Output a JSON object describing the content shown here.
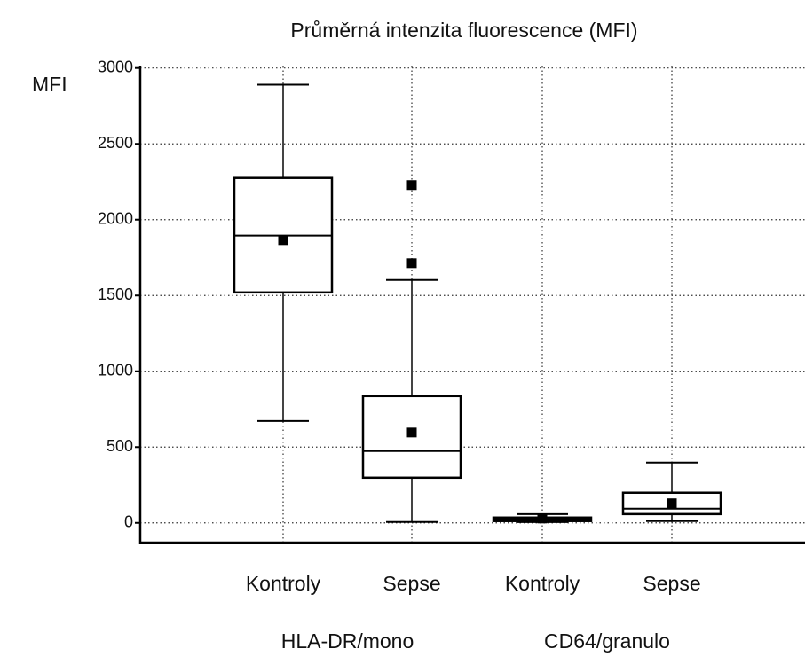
{
  "chart_data": {
    "type": "box",
    "title": "Průměrná intenzita fluorescence (MFI)",
    "y_label": "MFI",
    "ylim": [
      -130,
      3010
    ],
    "yticks": [
      0,
      500,
      1000,
      1500,
      2000,
      2500,
      3000
    ],
    "grid": true,
    "color": "#000000",
    "groups": [
      {
        "name": "HLA-DR/mono",
        "boxes": [
          {
            "category": "Kontroly",
            "min": 672,
            "q1": 1520,
            "median": 1895,
            "q3": 2275,
            "max": 2890,
            "mean": 1865
          },
          {
            "category": "Sepse",
            "min": 6,
            "q1": 298,
            "median": 474,
            "q3": 836,
            "max": 1602,
            "mean": 596,
            "outliers": [
              2228,
              1713
            ]
          }
        ]
      },
      {
        "name": "CD64/granulo",
        "boxes": [
          {
            "category": "Kontroly",
            "min": 5,
            "q1": 12,
            "median": 23,
            "q3": 35,
            "max": 58,
            "mean": 29
          },
          {
            "category": "Sepse",
            "min": 12,
            "q1": 58,
            "median": 94,
            "q3": 199,
            "max": 398,
            "mean": 129
          }
        ]
      }
    ]
  }
}
